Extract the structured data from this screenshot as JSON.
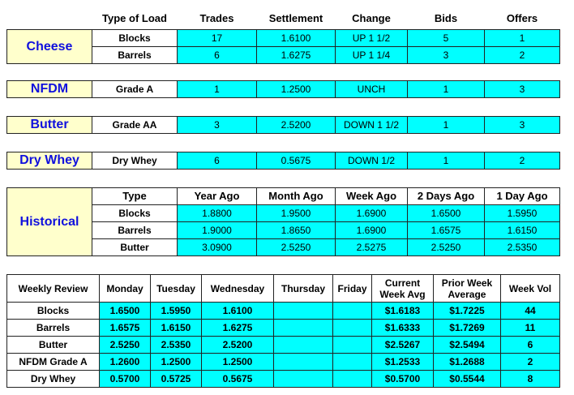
{
  "header": [
    "Type of Load",
    "Trades",
    "Settlement",
    "Change",
    "Bids",
    "Offers"
  ],
  "products": [
    {
      "name": "Cheese",
      "rows": [
        [
          "Blocks",
          "17",
          "1.6100",
          "UP 1 1/2",
          "5",
          "1"
        ],
        [
          "Barrels",
          "6",
          "1.6275",
          "UP 1 1/4",
          "3",
          "2"
        ]
      ]
    },
    {
      "name": "NFDM",
      "rows": [
        [
          "Grade A",
          "1",
          "1.2500",
          "UNCH",
          "1",
          "3"
        ]
      ]
    },
    {
      "name": "Butter",
      "rows": [
        [
          "Grade AA",
          "3",
          "2.5200",
          "DOWN 1 1/2",
          "1",
          "3"
        ]
      ]
    },
    {
      "name": "Dry Whey",
      "rows": [
        [
          "Dry Whey",
          "6",
          "0.5675",
          "DOWN 1/2",
          "1",
          "2"
        ]
      ]
    }
  ],
  "historical": {
    "name": "Historical",
    "header": [
      "Type",
      "Year Ago",
      "Month Ago",
      "Week Ago",
      "2 Days Ago",
      "1 Day Ago"
    ],
    "rows": [
      [
        "Blocks",
        "1.8800",
        "1.9500",
        "1.6900",
        "1.6500",
        "1.5950"
      ],
      [
        "Barrels",
        "1.9000",
        "1.8650",
        "1.6900",
        "1.6575",
        "1.6150"
      ],
      [
        "Butter",
        "3.0900",
        "2.5250",
        "2.5275",
        "2.5250",
        "2.5350"
      ]
    ]
  },
  "weekly": {
    "header": [
      "Weekly Review",
      "Monday",
      "Tuesday",
      "Wednesday",
      "Thursday",
      "Friday",
      "Current\nWeek Avg",
      "Prior Week\nAverage",
      "Week Vol"
    ],
    "rows": [
      [
        "Blocks",
        "1.6500",
        "1.5950",
        "1.6100",
        null,
        null,
        "$1.6183",
        "$1.7225",
        "44"
      ],
      [
        "Barrels",
        "1.6575",
        "1.6150",
        "1.6275",
        null,
        null,
        "$1.6333",
        "$1.7269",
        "11"
      ],
      [
        "Butter",
        "2.5250",
        "2.5350",
        "2.5200",
        null,
        null,
        "$2.5267",
        "$2.5494",
        "6"
      ],
      [
        "NFDM Grade A",
        "1.2600",
        "1.2500",
        "1.2500",
        null,
        null,
        "$1.2533",
        "$1.2688",
        "2"
      ],
      [
        "Dry Whey",
        "0.5700",
        "0.5725",
        "0.5675",
        null,
        null,
        "$0.5700",
        "$0.5544",
        "8"
      ]
    ]
  }
}
